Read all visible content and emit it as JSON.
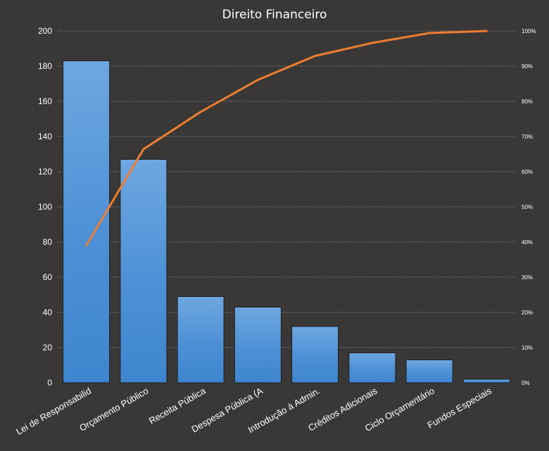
{
  "chart_data": {
    "type": "bar",
    "title": "Direito Financeiro",
    "categories": [
      "Lei de Responsabilid",
      "Orçamento Público",
      "Receita Pública",
      "Despesa Pública (A",
      "Introdução à Admin.",
      "Créditos Adicionais",
      "Ciclo Orçamentário",
      "Fundos  Especiais"
    ],
    "series": [
      {
        "type": "bar",
        "values": [
          183,
          127,
          49,
          43,
          32,
          17,
          13,
          2
        ]
      },
      {
        "type": "line",
        "axis": "secondary",
        "values": [
          0.39,
          0.664,
          0.77,
          0.861,
          0.929,
          0.966,
          0.994,
          1.0
        ]
      }
    ],
    "ylim": [
      0,
      200
    ],
    "yticks": [
      "0",
      "20",
      "40",
      "60",
      "80",
      "100",
      "120",
      "140",
      "160",
      "180",
      "200"
    ],
    "y2lim": [
      0,
      1
    ],
    "y2ticks": [
      "0%",
      "10%",
      "20%",
      "30%",
      "40%",
      "50%",
      "60%",
      "70%",
      "80%",
      "90%",
      "100%"
    ],
    "grid": true,
    "colors": {
      "bar": "#4a8fd6",
      "bar_top": "#6aa6e2",
      "line": "#ee7d31",
      "background": "#3a3836",
      "text": "#ffffff"
    }
  }
}
